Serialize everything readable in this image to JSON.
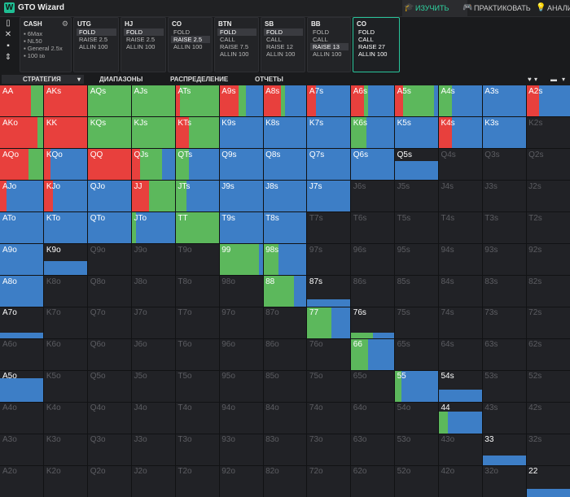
{
  "app": {
    "name": "GTO Wizard"
  },
  "nav": [
    {
      "label": "ИЗУЧИТЬ",
      "icon": "graduation-cap-icon",
      "active": true
    },
    {
      "label": "ПРАКТИКОВАТЬ",
      "icon": "gamepad-icon",
      "active": false
    },
    {
      "label": "АНАЛИ",
      "icon": "bulb-icon",
      "active": false
    }
  ],
  "cash": {
    "title": "CASH",
    "lines": [
      "6Max",
      "NL50",
      "General 2.5x",
      "100"
    ],
    "bb_suffix": "bb"
  },
  "positions": [
    {
      "name": "UTG",
      "options": [
        "FOLD",
        "RAISE 2.5",
        "ALLIN 100"
      ],
      "selected": 0
    },
    {
      "name": "HJ",
      "options": [
        "FOLD",
        "RAISE 2.5",
        "ALLIN 100"
      ],
      "selected": 0
    },
    {
      "name": "CO",
      "options": [
        "FOLD",
        "RAISE 2.5",
        "ALLIN 100"
      ],
      "selected": 1
    },
    {
      "name": "BTN",
      "options": [
        "FOLD",
        "CALL",
        "RAISE 7.5",
        "ALLIN 100"
      ],
      "selected": 0
    },
    {
      "name": "SB",
      "options": [
        "FOLD",
        "CALL",
        "RAISE 12",
        "ALLIN 100"
      ],
      "selected": 0
    },
    {
      "name": "BB",
      "options": [
        "FOLD",
        "CALL",
        "RAISE 13",
        "ALLIN 100"
      ],
      "selected": 2
    },
    {
      "name": "CO",
      "options": [
        "FOLD",
        "CALL",
        "RAISE 27",
        "ALLIN 100"
      ],
      "selected": -1,
      "current": true
    }
  ],
  "subtabs": [
    "СТРАТЕГИЯ",
    "ДИАПАЗОНЫ",
    "РАСПРЕДЕЛЕНИЕ",
    "ОТЧЕТЫ"
  ],
  "colors": {
    "raise": "#e8403d",
    "call": "#5cb85c",
    "fold": "#3d7ec6",
    "empty": "#212226",
    "accent": "#29c49a"
  },
  "chart_data": {
    "type": "heatmap",
    "ranks": [
      "A",
      "K",
      "Q",
      "J",
      "T",
      "9",
      "8",
      "7",
      "6",
      "5",
      "4",
      "3",
      "2"
    ],
    "hands": [
      [
        "AA",
        "AKs",
        "AQs",
        "AJs",
        "ATs",
        "A9s",
        "A8s",
        "A7s",
        "A6s",
        "A5s",
        "A4s",
        "A3s",
        "A2s"
      ],
      [
        "AKo",
        "KK",
        "KQs",
        "KJs",
        "KTs",
        "K9s",
        "K8s",
        "K7s",
        "K6s",
        "K5s",
        "K4s",
        "K3s",
        "K2s"
      ],
      [
        "AQo",
        "KQo",
        "QQ",
        "QJs",
        "QTs",
        "Q9s",
        "Q8s",
        "Q7s",
        "Q6s",
        "Q5s",
        "Q4s",
        "Q3s",
        "Q2s"
      ],
      [
        "AJo",
        "KJo",
        "QJo",
        "JJ",
        "JTs",
        "J9s",
        "J8s",
        "J7s",
        "J6s",
        "J5s",
        "J4s",
        "J3s",
        "J2s"
      ],
      [
        "ATo",
        "KTo",
        "QTo",
        "JTo",
        "TT",
        "T9s",
        "T8s",
        "T7s",
        "T6s",
        "T5s",
        "T4s",
        "T3s",
        "T2s"
      ],
      [
        "A9o",
        "K9o",
        "Q9o",
        "J9o",
        "T9o",
        "99",
        "98s",
        "97s",
        "96s",
        "95s",
        "94s",
        "93s",
        "92s"
      ],
      [
        "A8o",
        "K8o",
        "Q8o",
        "J8o",
        "T8o",
        "98o",
        "88",
        "87s",
        "86s",
        "85s",
        "84s",
        "83s",
        "82s"
      ],
      [
        "A7o",
        "K7o",
        "Q7o",
        "J7o",
        "T7o",
        "97o",
        "87o",
        "77",
        "76s",
        "75s",
        "74s",
        "73s",
        "72s"
      ],
      [
        "A6o",
        "K6o",
        "Q6o",
        "J6o",
        "T6o",
        "96o",
        "86o",
        "76o",
        "66",
        "65s",
        "64s",
        "63s",
        "62s"
      ],
      [
        "A5o",
        "K5o",
        "Q5o",
        "J5o",
        "T5o",
        "95o",
        "85o",
        "75o",
        "65o",
        "55",
        "54s",
        "53s",
        "52s"
      ],
      [
        "A4o",
        "K4o",
        "Q4o",
        "J4o",
        "T4o",
        "94o",
        "84o",
        "74o",
        "64o",
        "54o",
        "44",
        "43s",
        "42s"
      ],
      [
        "A3o",
        "K3o",
        "Q3o",
        "J3o",
        "T3o",
        "93o",
        "83o",
        "73o",
        "63o",
        "53o",
        "43o",
        "33",
        "32s"
      ],
      [
        "A2o",
        "K2o",
        "Q2o",
        "J2o",
        "T2o",
        "92o",
        "82o",
        "72o",
        "62o",
        "52o",
        "42o",
        "32o",
        "22"
      ]
    ],
    "freq_order": [
      "raise",
      "call",
      "fold"
    ],
    "frequencies": [
      [
        [
          0.7,
          0.3,
          0
        ],
        [
          1,
          0,
          0
        ],
        [
          0,
          1,
          0
        ],
        [
          0,
          1,
          0
        ],
        [
          0.1,
          0.9,
          0
        ],
        [
          0.45,
          0.15,
          0.4
        ],
        [
          0.4,
          0.1,
          0.5
        ],
        [
          0.2,
          0,
          0.8
        ],
        [
          0.3,
          0.1,
          0.6
        ],
        [
          0.2,
          0.7,
          0.1
        ],
        [
          0,
          0.3,
          0.7
        ],
        [
          0,
          0,
          1
        ],
        [
          0.3,
          0,
          0.7
        ]
      ],
      [
        [
          0.85,
          0.15,
          0
        ],
        [
          1,
          0,
          0
        ],
        [
          0,
          1,
          0
        ],
        [
          0,
          1,
          0
        ],
        [
          0.3,
          0.7,
          0
        ],
        [
          0,
          0,
          1
        ],
        [
          0,
          0,
          1
        ],
        [
          0,
          0,
          1
        ],
        [
          0,
          0.35,
          0.65
        ],
        [
          0,
          0,
          1
        ],
        [
          0.3,
          0,
          0.7
        ],
        [
          0,
          0,
          1
        ],
        [
          0,
          0,
          0
        ]
      ],
      [
        [
          0.65,
          0.35,
          0
        ],
        [
          0.15,
          0,
          0.85
        ],
        [
          1,
          0,
          0
        ],
        [
          0.2,
          0.5,
          0.3
        ],
        [
          0,
          0.3,
          0.7
        ],
        [
          0,
          0,
          1
        ],
        [
          0,
          0,
          1
        ],
        [
          0,
          0,
          1
        ],
        [
          0,
          0,
          1
        ],
        [
          0,
          0,
          0.6
        ],
        [
          0,
          0,
          0
        ],
        [
          0,
          0,
          0
        ],
        [
          0,
          0,
          0
        ]
      ],
      [
        [
          0.15,
          0,
          0.85
        ],
        [
          0.2,
          0,
          0.8
        ],
        [
          0,
          0,
          1
        ],
        [
          0.4,
          0.6,
          0
        ],
        [
          0,
          0.25,
          0.75
        ],
        [
          0,
          0,
          1
        ],
        [
          0,
          0,
          1
        ],
        [
          0,
          0,
          1
        ],
        [
          0,
          0,
          0
        ],
        [
          0,
          0,
          0
        ],
        [
          0,
          0,
          0
        ],
        [
          0,
          0,
          0
        ],
        [
          0,
          0,
          0
        ]
      ],
      [
        [
          0,
          0,
          1
        ],
        [
          0,
          0,
          1
        ],
        [
          0,
          0,
          1
        ],
        [
          0,
          0.1,
          0.9
        ],
        [
          0,
          1,
          0
        ],
        [
          0,
          0,
          1
        ],
        [
          0,
          0,
          1
        ],
        [
          0,
          0,
          0
        ],
        [
          0,
          0,
          0
        ],
        [
          0,
          0,
          0
        ],
        [
          0,
          0,
          0
        ],
        [
          0,
          0,
          0
        ],
        [
          0,
          0,
          0
        ]
      ],
      [
        [
          0,
          0,
          1
        ],
        [
          0,
          0,
          0.45
        ],
        [
          0,
          0,
          0
        ],
        [
          0,
          0,
          0
        ],
        [
          0,
          0,
          0
        ],
        [
          0,
          0.9,
          0.1
        ],
        [
          0,
          0.35,
          0.65
        ],
        [
          0,
          0,
          0
        ],
        [
          0,
          0,
          0
        ],
        [
          0,
          0,
          0
        ],
        [
          0,
          0,
          0
        ],
        [
          0,
          0,
          0
        ],
        [
          0,
          0,
          0
        ]
      ],
      [
        [
          0,
          0,
          1
        ],
        [
          0,
          0,
          0
        ],
        [
          0,
          0,
          0
        ],
        [
          0,
          0,
          0
        ],
        [
          0,
          0,
          0
        ],
        [
          0,
          0,
          0
        ],
        [
          0,
          0.7,
          0.3
        ],
        [
          0,
          0,
          0.25
        ],
        [
          0,
          0,
          0
        ],
        [
          0,
          0,
          0
        ],
        [
          0,
          0,
          0
        ],
        [
          0,
          0,
          0
        ],
        [
          0,
          0,
          0
        ]
      ],
      [
        [
          0,
          0,
          0.2
        ],
        [
          0,
          0,
          0
        ],
        [
          0,
          0,
          0
        ],
        [
          0,
          0,
          0
        ],
        [
          0,
          0,
          0
        ],
        [
          0,
          0,
          0
        ],
        [
          0,
          0,
          0
        ],
        [
          0,
          0.55,
          0.45
        ],
        [
          0,
          0.1,
          0.1
        ],
        [
          0,
          0,
          0
        ],
        [
          0,
          0,
          0
        ],
        [
          0,
          0,
          0
        ],
        [
          0,
          0,
          0
        ]
      ],
      [
        [
          0,
          0,
          0
        ],
        [
          0,
          0,
          0
        ],
        [
          0,
          0,
          0
        ],
        [
          0,
          0,
          0
        ],
        [
          0,
          0,
          0
        ],
        [
          0,
          0,
          0
        ],
        [
          0,
          0,
          0
        ],
        [
          0,
          0,
          0
        ],
        [
          0,
          0.4,
          0.6
        ],
        [
          0,
          0,
          0
        ],
        [
          0,
          0,
          0
        ],
        [
          0,
          0,
          0
        ],
        [
          0,
          0,
          0
        ]
      ],
      [
        [
          0,
          0,
          0.75
        ],
        [
          0,
          0,
          0
        ],
        [
          0,
          0,
          0
        ],
        [
          0,
          0,
          0
        ],
        [
          0,
          0,
          0
        ],
        [
          0,
          0,
          0
        ],
        [
          0,
          0,
          0
        ],
        [
          0,
          0,
          0
        ],
        [
          0,
          0,
          0
        ],
        [
          0,
          0.15,
          0.85
        ],
        [
          0,
          0,
          0.4
        ],
        [
          0,
          0,
          0
        ],
        [
          0,
          0,
          0
        ]
      ],
      [
        [
          0,
          0,
          0
        ],
        [
          0,
          0,
          0
        ],
        [
          0,
          0,
          0
        ],
        [
          0,
          0,
          0
        ],
        [
          0,
          0,
          0
        ],
        [
          0,
          0,
          0
        ],
        [
          0,
          0,
          0
        ],
        [
          0,
          0,
          0
        ],
        [
          0,
          0,
          0
        ],
        [
          0,
          0,
          0
        ],
        [
          0,
          0.15,
          0.55
        ],
        [
          0,
          0,
          0
        ],
        [
          0,
          0,
          0
        ]
      ],
      [
        [
          0,
          0,
          0
        ],
        [
          0,
          0,
          0
        ],
        [
          0,
          0,
          0
        ],
        [
          0,
          0,
          0
        ],
        [
          0,
          0,
          0
        ],
        [
          0,
          0,
          0
        ],
        [
          0,
          0,
          0
        ],
        [
          0,
          0,
          0
        ],
        [
          0,
          0,
          0
        ],
        [
          0,
          0,
          0
        ],
        [
          0,
          0,
          0
        ],
        [
          0,
          0,
          0.3
        ],
        [
          0,
          0,
          0
        ]
      ],
      [
        [
          0,
          0,
          0
        ],
        [
          0,
          0,
          0
        ],
        [
          0,
          0,
          0
        ],
        [
          0,
          0,
          0
        ],
        [
          0,
          0,
          0
        ],
        [
          0,
          0,
          0
        ],
        [
          0,
          0,
          0
        ],
        [
          0,
          0,
          0
        ],
        [
          0,
          0,
          0
        ],
        [
          0,
          0,
          0
        ],
        [
          0,
          0,
          0
        ],
        [
          0,
          0,
          0
        ],
        [
          0,
          0,
          0.25
        ]
      ]
    ]
  }
}
